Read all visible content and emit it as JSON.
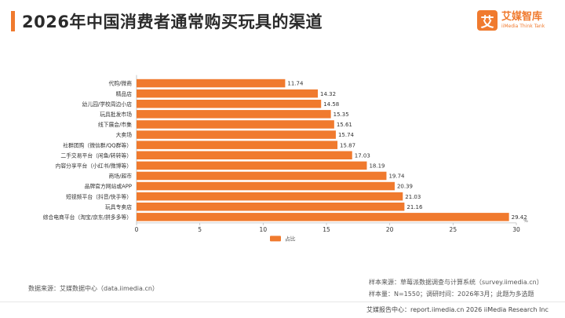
{
  "title": "2026年中国消费者通常购买玩具的渠道",
  "logo": {
    "mark": "艾",
    "name_cn": "艾媒智库",
    "name_en": "iiMedia Think Tank"
  },
  "chart_data": {
    "type": "bar",
    "orientation": "horizontal",
    "categories": [
      "代购/微商",
      "精品店",
      "幼儿园/学校周边小店",
      "玩具批发市场",
      "线下展会/市集",
      "大卖场",
      "社群团购（微信群/QQ群等）",
      "二手交易平台（闲鱼/转转等）",
      "内容分享平台（小红书/微博等）",
      "商场/超市",
      "品牌官方网站或APP",
      "短视频平台（抖音/快手等）",
      "玩具专卖店",
      "综合电商平台（淘宝/京东/拼多多等）"
    ],
    "series": [
      {
        "name": "占比",
        "values": [
          11.74,
          14.32,
          14.58,
          15.35,
          15.61,
          15.74,
          15.87,
          17.03,
          18.19,
          19.74,
          20.39,
          21.03,
          21.16,
          29.42
        ]
      }
    ],
    "value_labels": [
      "11.74",
      "14.32",
      "14.58",
      "15.35",
      "15.61",
      "15.74",
      "15.87",
      "17.03",
      "18.19",
      "19.74",
      "20.39",
      "21.03",
      "21.16",
      "29.42"
    ],
    "xlim": [
      0,
      30
    ],
    "xticks": [
      0,
      5,
      10,
      15,
      20,
      25,
      30
    ],
    "x_unit": "%",
    "legend": "bottom-center",
    "bar_color": "#f07a2e"
  },
  "source_left": "数据来源：艾媒数据中心（data.iimedia.cn）",
  "source_right": [
    "样本来源：草莓派数据调查与计算系统（survey.iimedia.cn）",
    "样本量：N=1550；调研时间：2026年3月；此题为多选题"
  ],
  "footer": "艾媒报告中心：report.iimedia.cn   2026 iiMedia Research Inc"
}
